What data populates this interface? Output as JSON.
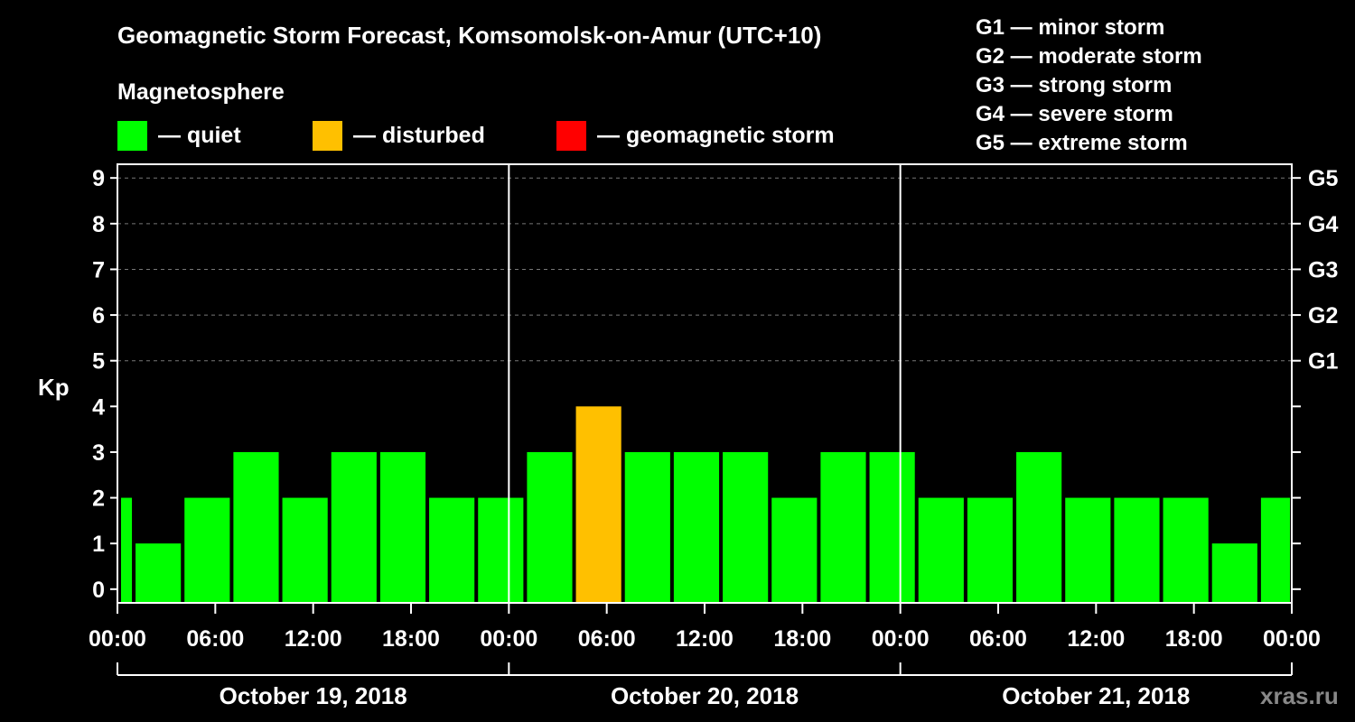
{
  "chart_data": {
    "type": "bar",
    "title": "Geomagnetic Storm Forecast, Komsomolsk-on-Amur (UTC+10)",
    "ylabel": "Kp",
    "ylim": [
      -0.3,
      9.3
    ],
    "yticks": [
      0,
      1,
      2,
      3,
      4,
      5,
      6,
      7,
      8,
      9
    ],
    "right_axis": [
      {
        "kp": 5,
        "label": "G1"
      },
      {
        "kp": 6,
        "label": "G2"
      },
      {
        "kp": 7,
        "label": "G3"
      },
      {
        "kp": 8,
        "label": "G4"
      },
      {
        "kp": 9,
        "label": "G5"
      }
    ],
    "storm_scale": [
      "G1 — minor storm",
      "G2 — moderate storm",
      "G3 — strong storm",
      "G4 — severe storm",
      "G5 — extreme storm"
    ],
    "legend": {
      "title": "Magnetosphere",
      "items": [
        {
          "label": "— quiet",
          "color": "#00ff00"
        },
        {
          "label": "— disturbed",
          "color": "#ffc000"
        },
        {
          "label": "— geomagnetic storm",
          "color": "#ff0000"
        }
      ]
    },
    "xlim_hours": [
      0,
      72
    ],
    "x_tick_labels": [
      "00:00",
      "06:00",
      "12:00",
      "18:00",
      "00:00",
      "06:00",
      "12:00",
      "18:00",
      "00:00",
      "06:00",
      "12:00",
      "18:00",
      "00:00"
    ],
    "days": [
      "October 19, 2018",
      "October 20, 2018",
      "October 21, 2018"
    ],
    "bars": [
      {
        "start": -1,
        "end": 1,
        "kp": 2,
        "color": "#00ff00"
      },
      {
        "start": 1,
        "end": 4,
        "kp": 1,
        "color": "#00ff00"
      },
      {
        "start": 4,
        "end": 7,
        "kp": 2,
        "color": "#00ff00"
      },
      {
        "start": 7,
        "end": 10,
        "kp": 3,
        "color": "#00ff00"
      },
      {
        "start": 10,
        "end": 13,
        "kp": 2,
        "color": "#00ff00"
      },
      {
        "start": 13,
        "end": 16,
        "kp": 3,
        "color": "#00ff00"
      },
      {
        "start": 16,
        "end": 19,
        "kp": 3,
        "color": "#00ff00"
      },
      {
        "start": 19,
        "end": 22,
        "kp": 2,
        "color": "#00ff00"
      },
      {
        "start": 22,
        "end": 25,
        "kp": 2,
        "color": "#00ff00"
      },
      {
        "start": 25,
        "end": 28,
        "kp": 3,
        "color": "#00ff00"
      },
      {
        "start": 28,
        "end": 31,
        "kp": 4,
        "color": "#ffc000"
      },
      {
        "start": 31,
        "end": 34,
        "kp": 3,
        "color": "#00ff00"
      },
      {
        "start": 34,
        "end": 37,
        "kp": 3,
        "color": "#00ff00"
      },
      {
        "start": 37,
        "end": 40,
        "kp": 3,
        "color": "#00ff00"
      },
      {
        "start": 40,
        "end": 43,
        "kp": 2,
        "color": "#00ff00"
      },
      {
        "start": 43,
        "end": 46,
        "kp": 3,
        "color": "#00ff00"
      },
      {
        "start": 46,
        "end": 49,
        "kp": 3,
        "color": "#00ff00"
      },
      {
        "start": 49,
        "end": 52,
        "kp": 2,
        "color": "#00ff00"
      },
      {
        "start": 52,
        "end": 55,
        "kp": 2,
        "color": "#00ff00"
      },
      {
        "start": 55,
        "end": 58,
        "kp": 3,
        "color": "#00ff00"
      },
      {
        "start": 58,
        "end": 61,
        "kp": 2,
        "color": "#00ff00"
      },
      {
        "start": 61,
        "end": 64,
        "kp": 2,
        "color": "#00ff00"
      },
      {
        "start": 64,
        "end": 67,
        "kp": 2,
        "color": "#00ff00"
      },
      {
        "start": 67,
        "end": 70,
        "kp": 1,
        "color": "#00ff00"
      },
      {
        "start": 70,
        "end": 73,
        "kp": 2,
        "color": "#00ff00"
      }
    ],
    "watermark": "xras.ru"
  }
}
